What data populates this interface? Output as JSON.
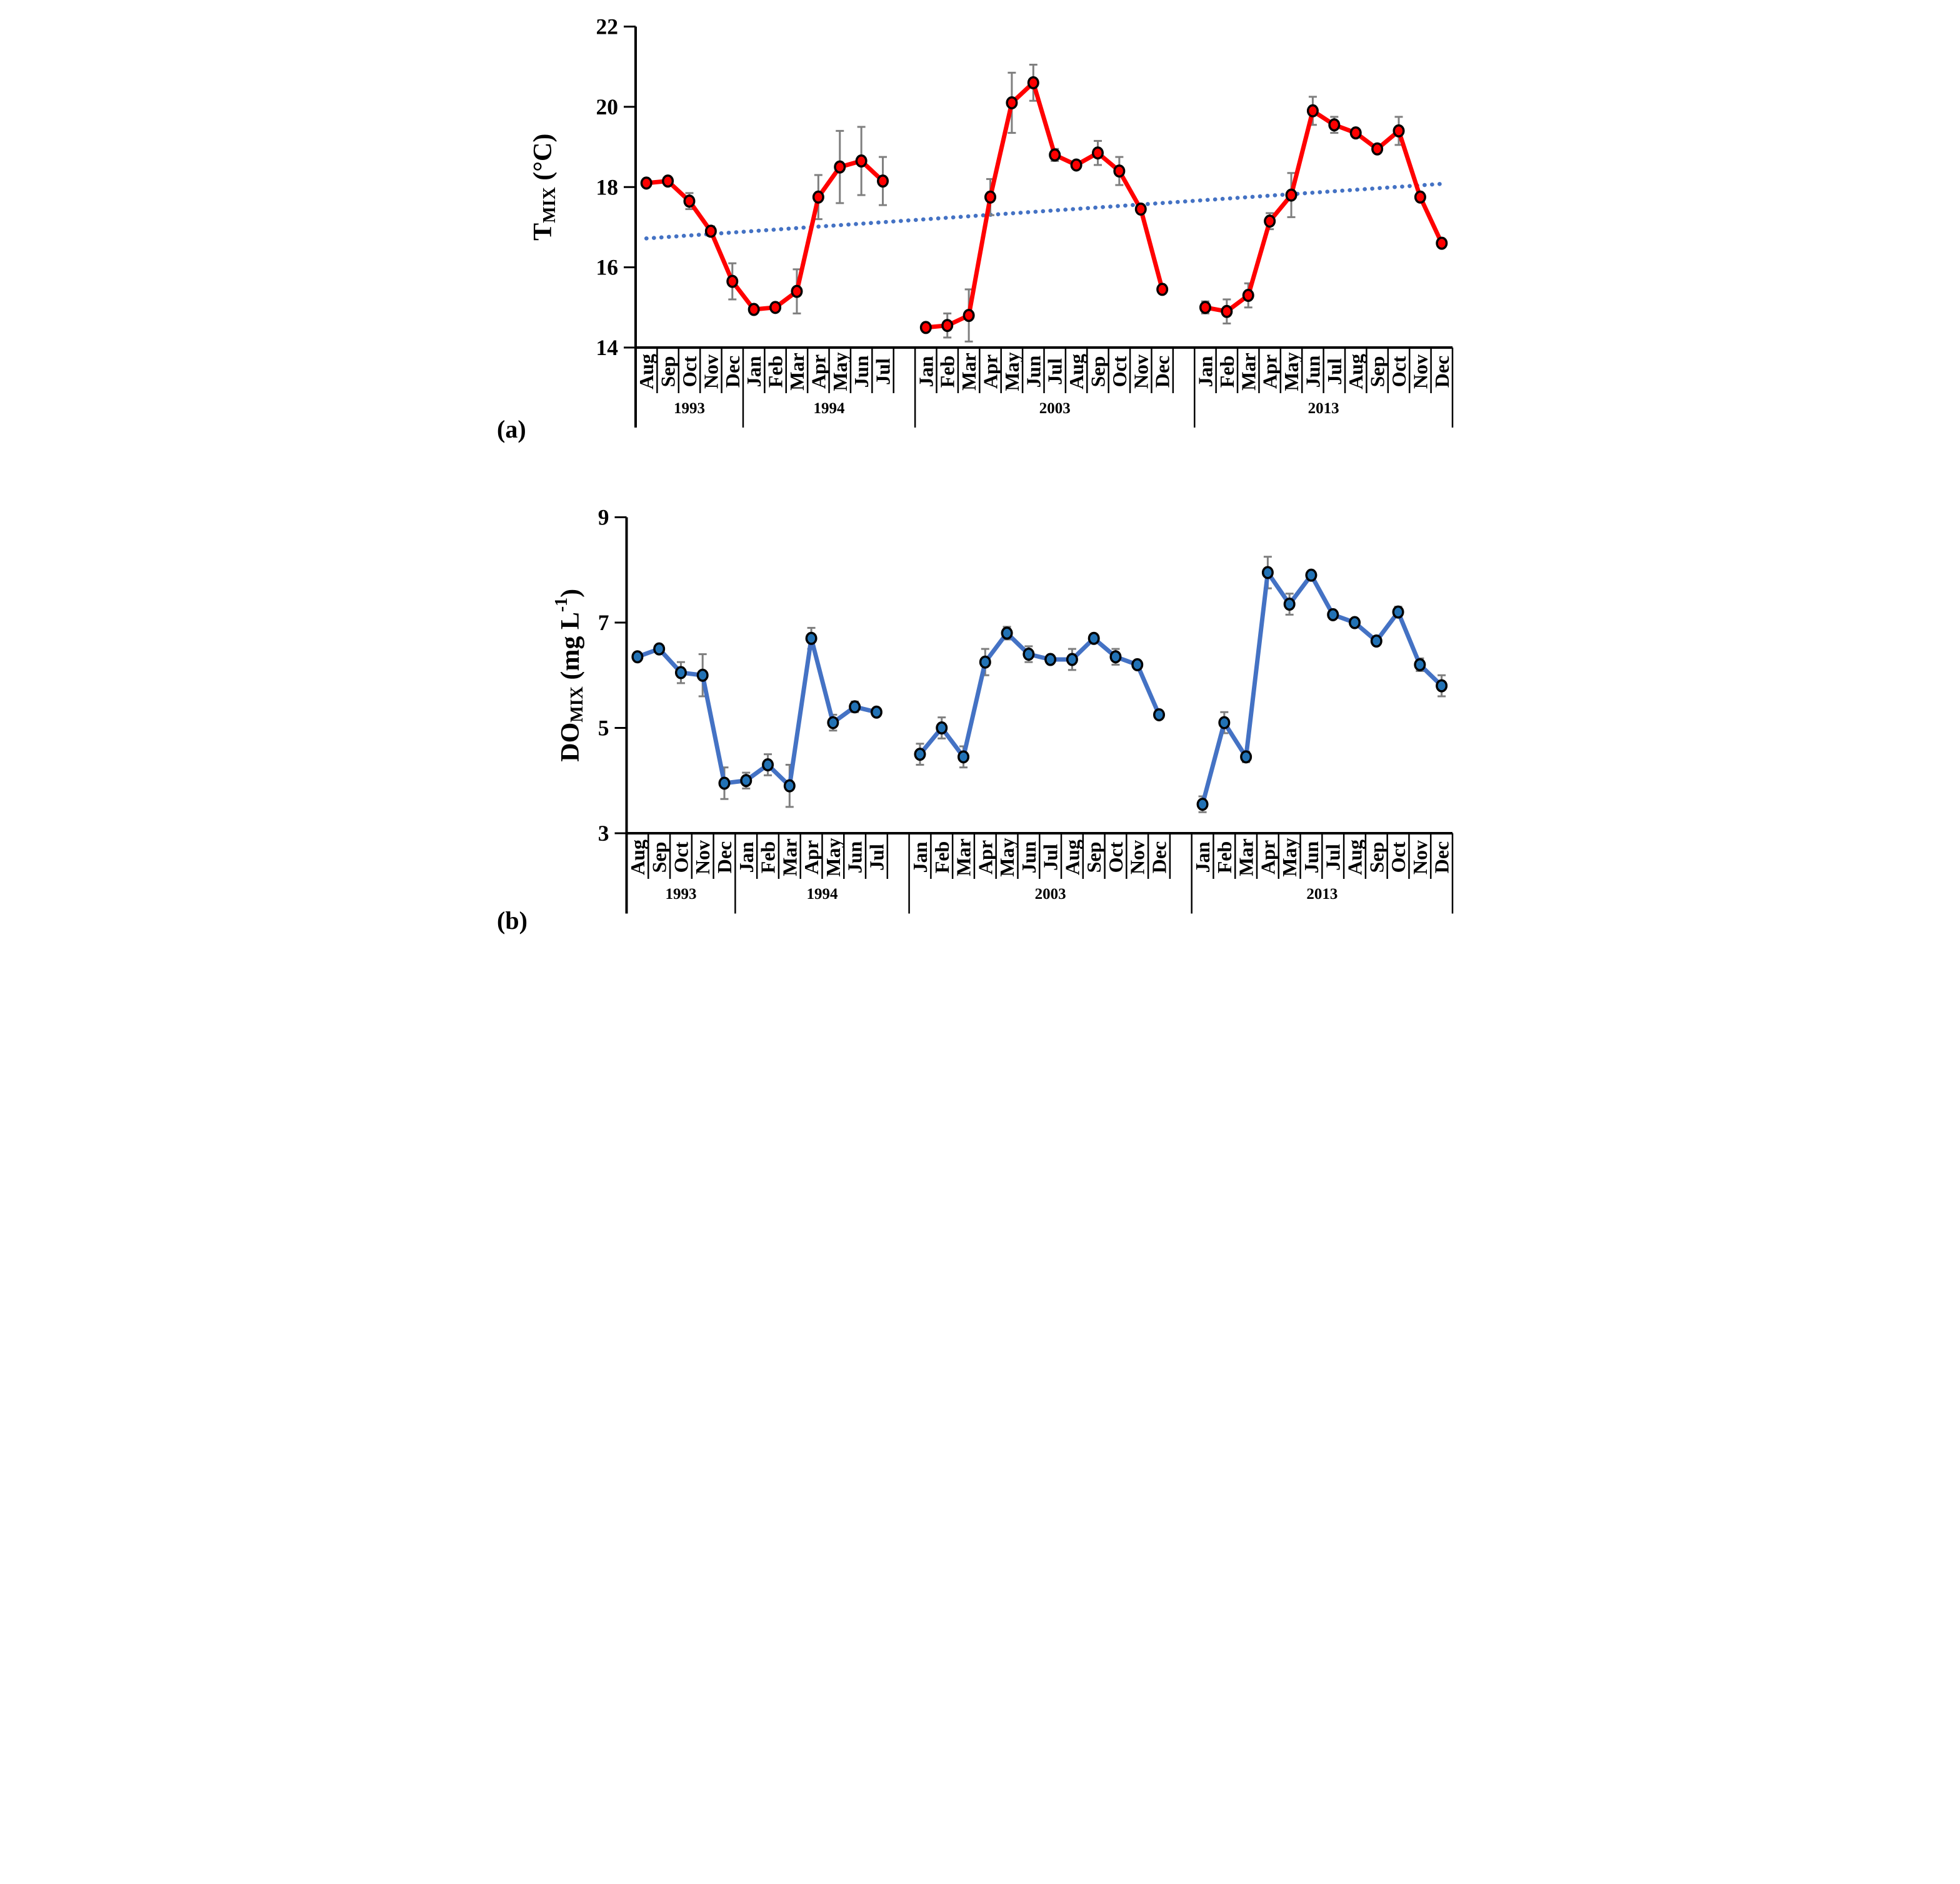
{
  "panels": {
    "a_label": "(a)",
    "b_label": "(b)"
  },
  "chart_data": [
    {
      "id": "a",
      "type": "line",
      "panel": "a",
      "ylabel_text": "TMIX (°C)",
      "ylabel_parts": [
        {
          "t": "T"
        },
        {
          "t": "MIX",
          "sub": true
        },
        {
          "t": " (°C)"
        }
      ],
      "ylim": [
        14,
        22
      ],
      "yticks": [
        22,
        20,
        18,
        16,
        14
      ],
      "line_color": "#FF0000",
      "marker_color": "#FF0000",
      "marker_outline": "#000000",
      "error_color": "#7F7F7F",
      "trendline": {
        "style": "dotted",
        "color": "#4472C4",
        "start_value": 16.72,
        "end_value": 18.08
      },
      "groups": [
        {
          "year": "1993",
          "months": [
            "Aug",
            "Sep",
            "Oct",
            "Nov",
            "Dec"
          ],
          "values": [
            18.1,
            18.15,
            17.65,
            16.9,
            15.65
          ],
          "errors": [
            0.06,
            0.06,
            0.2,
            0.12,
            0.45
          ],
          "gap_after": false
        },
        {
          "year": "1994",
          "months": [
            "Jan",
            "Feb",
            "Mar",
            "Apr",
            "May",
            "Jun",
            "Jul"
          ],
          "values": [
            14.95,
            15.0,
            15.4,
            17.75,
            18.5,
            18.65,
            18.15
          ],
          "errors": [
            0.06,
            0.1,
            0.55,
            0.55,
            0.9,
            0.85,
            0.6
          ],
          "gap_after": true
        },
        {
          "year": "2003",
          "months": [
            "Jan",
            "Feb",
            "Mar",
            "Apr",
            "May",
            "Jun",
            "Jul",
            "Aug",
            "Sep",
            "Oct",
            "Nov",
            "Dec"
          ],
          "values": [
            14.5,
            14.55,
            14.8,
            17.75,
            20.1,
            20.6,
            18.8,
            18.55,
            18.85,
            18.4,
            17.45,
            15.45
          ],
          "errors": [
            0.05,
            0.3,
            0.65,
            0.45,
            0.75,
            0.45,
            0.15,
            0.06,
            0.3,
            0.35,
            0.1,
            0.1
          ],
          "gap_after": true
        },
        {
          "year": "2013",
          "months": [
            "Jan",
            "Feb",
            "Mar",
            "Apr",
            "May",
            "Jun",
            "Jul",
            "Aug",
            "Sep",
            "Oct",
            "Nov",
            "Dec"
          ],
          "values": [
            15.0,
            14.9,
            15.3,
            17.15,
            17.8,
            19.9,
            19.55,
            19.35,
            18.95,
            19.4,
            17.75,
            16.6
          ],
          "errors": [
            0.15,
            0.3,
            0.3,
            0.2,
            0.55,
            0.35,
            0.2,
            0.06,
            0.06,
            0.35,
            0.1,
            0.06
          ],
          "gap_after": false
        }
      ]
    },
    {
      "id": "b",
      "type": "line",
      "panel": "b",
      "ylabel_text": "DOMIX (mg L-1)",
      "ylabel_parts": [
        {
          "t": "DO"
        },
        {
          "t": "MIX",
          "sub": true
        },
        {
          "t": " (mg L"
        },
        {
          "t": "-1",
          "sup": true
        },
        {
          "t": ")"
        }
      ],
      "ylim": [
        3,
        9
      ],
      "yticks": [
        9,
        7,
        5,
        3
      ],
      "line_color": "#4472C4",
      "marker_color": "#2272B5",
      "marker_outline": "#000000",
      "error_color": "#7F7F7F",
      "trendline": null,
      "groups": [
        {
          "year": "1993",
          "months": [
            "Aug",
            "Sep",
            "Oct",
            "Nov",
            "Dec"
          ],
          "values": [
            6.35,
            6.5,
            6.05,
            6.0,
            3.95
          ],
          "errors": [
            0.06,
            0.06,
            0.2,
            0.4,
            0.3
          ],
          "gap_after": false
        },
        {
          "year": "1994",
          "months": [
            "Jan",
            "Feb",
            "Mar",
            "Apr",
            "May",
            "Jun",
            "Jul"
          ],
          "values": [
            4.0,
            4.3,
            3.9,
            6.7,
            5.1,
            5.4,
            5.3
          ],
          "errors": [
            0.15,
            0.2,
            0.4,
            0.2,
            0.15,
            0.1,
            0.06
          ],
          "gap_after": true
        },
        {
          "year": "2003",
          "months": [
            "Jan",
            "Feb",
            "Mar",
            "Apr",
            "May",
            "Jun",
            "Jul",
            "Aug",
            "Sep",
            "Oct",
            "Nov",
            "Dec"
          ],
          "values": [
            4.5,
            5.0,
            4.45,
            6.25,
            6.8,
            6.4,
            6.3,
            6.3,
            6.7,
            6.35,
            6.2,
            5.25
          ],
          "errors": [
            0.2,
            0.2,
            0.2,
            0.25,
            0.12,
            0.15,
            0.06,
            0.2,
            0.06,
            0.15,
            0.06,
            0.06
          ],
          "gap_after": true
        },
        {
          "year": "2013",
          "months": [
            "Jan",
            "Feb",
            "Mar",
            "Apr",
            "May",
            "Jun",
            "Jul",
            "Aug",
            "Sep",
            "Oct",
            "Nov",
            "Dec"
          ],
          "values": [
            3.55,
            5.1,
            4.45,
            7.95,
            7.35,
            7.9,
            7.15,
            7.0,
            6.65,
            7.2,
            6.2,
            5.8
          ],
          "errors": [
            0.15,
            0.2,
            0.1,
            0.3,
            0.2,
            0.06,
            0.06,
            0.06,
            0.06,
            0.1,
            0.12,
            0.2
          ],
          "gap_after": false
        }
      ]
    }
  ]
}
